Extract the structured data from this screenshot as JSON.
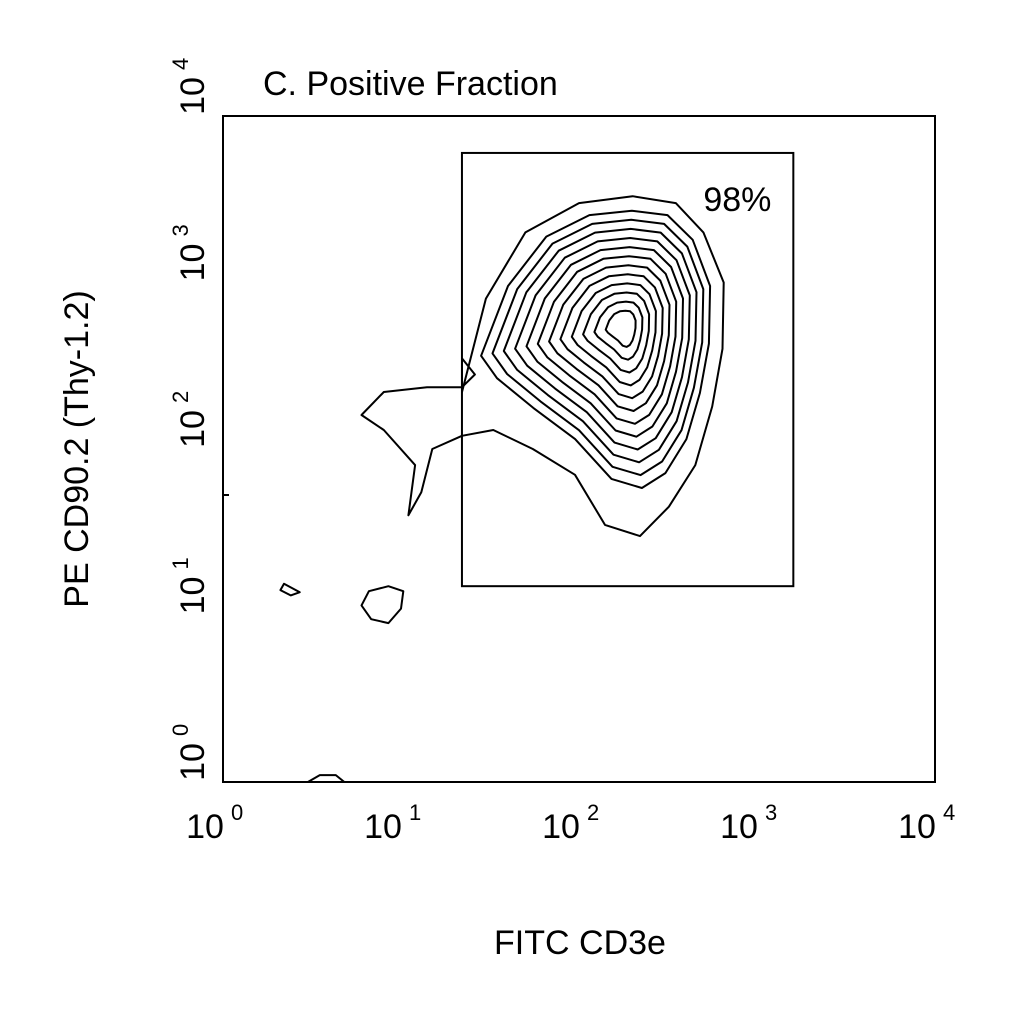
{
  "chart_data": {
    "type": "contour",
    "title": "C.  Positive Fraction",
    "xlabel": "FITC CD3e",
    "ylabel": "PE CD90.2 (Thy-1.2)",
    "xscale": "log",
    "yscale": "log",
    "xlim": [
      1,
      10000
    ],
    "ylim": [
      1,
      10000
    ],
    "grid": false,
    "x_ticks": [
      {
        "base": "10",
        "exp": "0"
      },
      {
        "base": "10",
        "exp": "1"
      },
      {
        "base": "10",
        "exp": "2"
      },
      {
        "base": "10",
        "exp": "3"
      },
      {
        "base": "10",
        "exp": "4"
      }
    ],
    "y_ticks": [
      {
        "base": "10",
        "exp": "0"
      },
      {
        "base": "10",
        "exp": "1"
      },
      {
        "base": "10",
        "exp": "2"
      },
      {
        "base": "10",
        "exp": "3"
      },
      {
        "base": "10",
        "exp": "4"
      }
    ],
    "gate": {
      "x_range": [
        22,
        1600
      ],
      "y_range": [
        15,
        6000
      ],
      "label": "98%"
    },
    "peak": {
      "x": 180,
      "y": 550
    },
    "outer_contour": [
      [
        22,
        220
      ],
      [
        30,
        800
      ],
      [
        50,
        2000
      ],
      [
        100,
        3000
      ],
      [
        200,
        3300
      ],
      [
        350,
        3000
      ],
      [
        500,
        2000
      ],
      [
        650,
        1000
      ],
      [
        640,
        400
      ],
      [
        560,
        180
      ],
      [
        450,
        80
      ],
      [
        320,
        45
      ],
      [
        220,
        30
      ],
      [
        140,
        35
      ],
      [
        95,
        70
      ],
      [
        55,
        100
      ],
      [
        33,
        130
      ],
      [
        22,
        120
      ],
      [
        15,
        100
      ],
      [
        13,
        55
      ],
      [
        11,
        40
      ],
      [
        12,
        80
      ],
      [
        8,
        130
      ],
      [
        6,
        160
      ],
      [
        8,
        220
      ],
      [
        14,
        235
      ],
      [
        22,
        235
      ],
      [
        26,
        280
      ],
      [
        22,
        350
      ]
    ],
    "inner_contours": 12,
    "islands": [
      [
        [
          6.0,
          11.5
        ],
        [
          6.6,
          14.0
        ],
        [
          8.5,
          15.0
        ],
        [
          10.3,
          14.0
        ],
        [
          10.0,
          11.0
        ],
        [
          8.5,
          9.0
        ],
        [
          6.8,
          9.5
        ]
      ],
      [
        [
          2.2,
          15.5
        ],
        [
          2.7,
          13.8
        ],
        [
          2.4,
          13.2
        ],
        [
          2.1,
          14.2
        ]
      ],
      [
        [
          3.0,
          1.0
        ],
        [
          3.5,
          1.1
        ],
        [
          4.3,
          1.1
        ],
        [
          4.8,
          1.0
        ]
      ]
    ]
  }
}
